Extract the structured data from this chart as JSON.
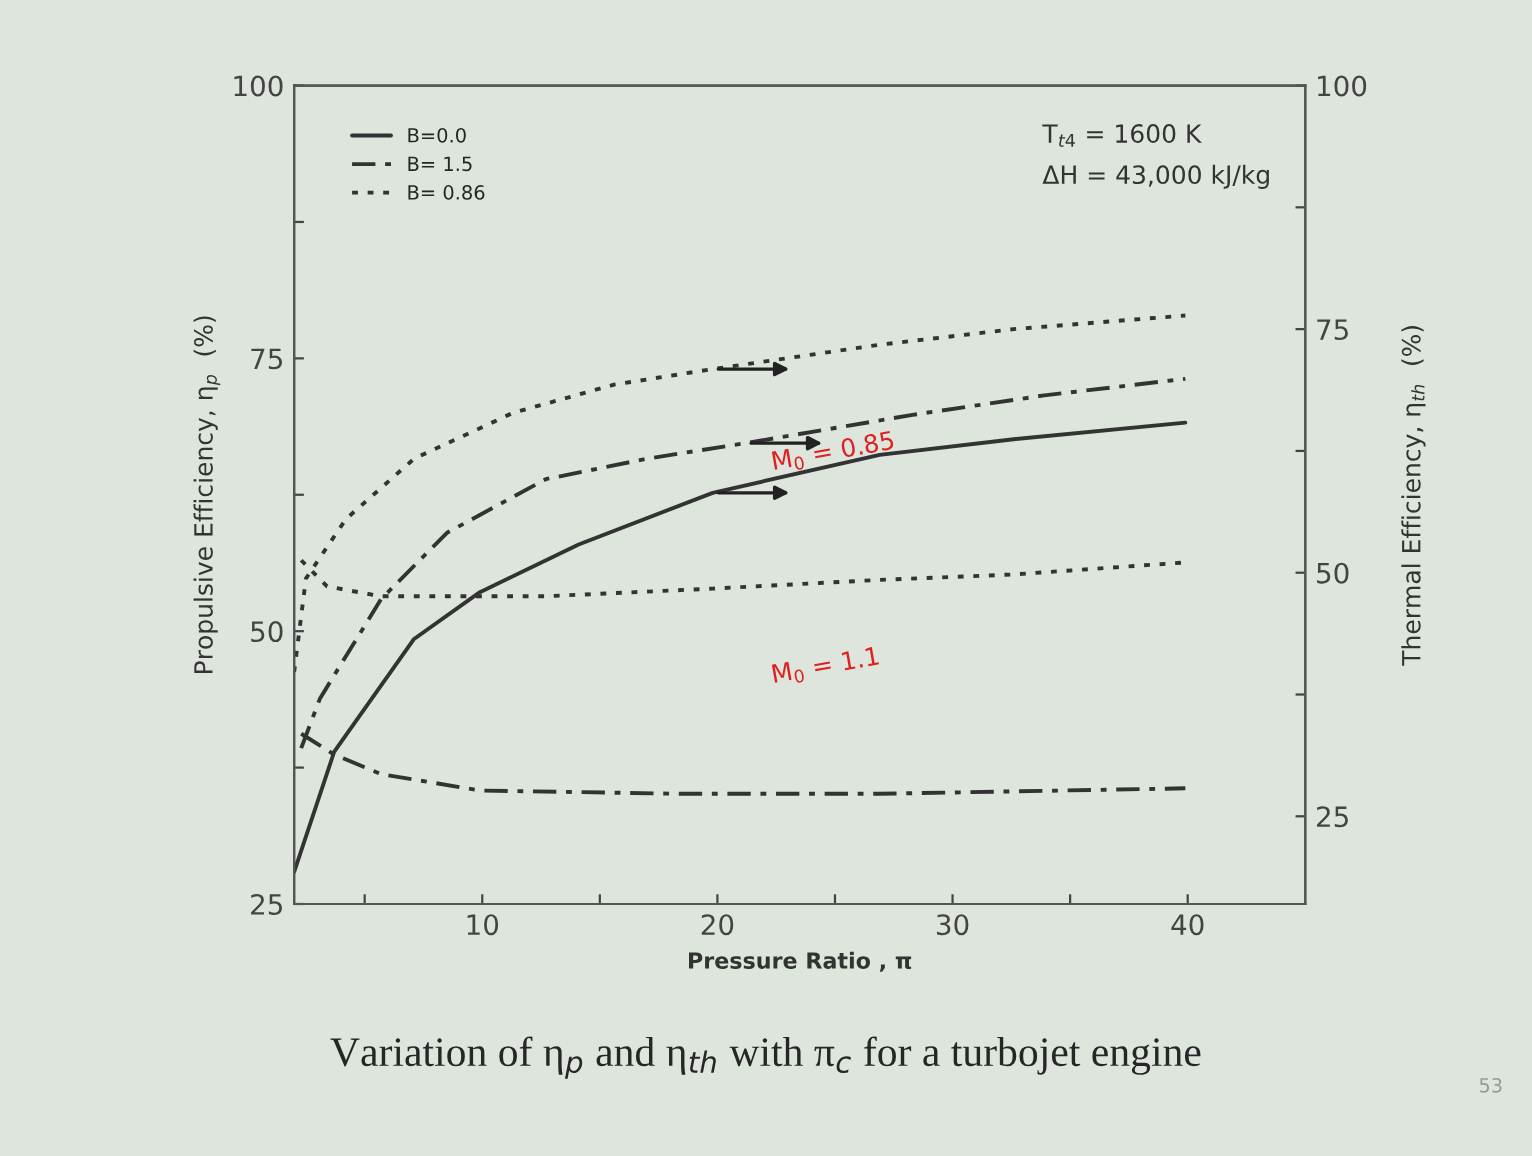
{
  "chart_data": {
    "type": "line",
    "title": "Variation of η$_{p}$ and η$_{th}$ with π$_{c}$ for a turbojet engine",
    "xlabel": "Pressure Ratio , π",
    "ylabel": "Propulsive Efficiency, η$_{p}$  (%)",
    "y2label": "Thermal Efficiency, η$_{th}$  (%)",
    "xlim": [
      2,
      45
    ],
    "xticks": [
      {
        "value": 5,
        "label": null
      },
      10,
      {
        "value": 15,
        "label": null
      },
      20,
      {
        "value": 25,
        "label": null
      },
      30,
      {
        "value": 35,
        "label": null
      },
      40
    ],
    "ylim": [
      25,
      100
    ],
    "yticks": [
      25,
      {
        "value": 37.5,
        "label": null
      },
      50,
      {
        "value": 62.5,
        "label": null
      },
      75,
      {
        "value": 87.5,
        "label": null
      },
      100
    ],
    "y2lim": [
      16,
      100
    ],
    "y2ticks": [
      25,
      {
        "value": 37.5,
        "label": null
      },
      50,
      {
        "value": 62.5,
        "label": null
      },
      75,
      {
        "value": 87.5,
        "label": null
      },
      100
    ],
    "legend": "top left",
    "grid": false,
    "series": [
      {
        "name": "B=0.0",
        "color": "#333333",
        "line_style": "solid",
        "axis": "y2",
        "x": [
          2,
          3.7,
          7.1,
          9.9,
          14.1,
          19.8,
          26.9,
          32.6,
          39.9
        ],
        "values": [
          19.3,
          31.6,
          43.2,
          48.0,
          52.9,
          58.2,
          62.1,
          63.7,
          65.4
        ]
      },
      {
        "name": "B= 1.5",
        "color": "#333333",
        "line_style": "dashdot",
        "axis": "y2",
        "x": [
          2.3,
          3.1,
          5.7,
          8.5,
          12.7,
          17.0,
          21.2,
          28.3,
          33.9,
          39.9
        ],
        "values": [
          32,
          37.1,
          47.3,
          54.1,
          59.6,
          61.7,
          63.3,
          66.2,
          68.2,
          69.9
        ]
      },
      {
        "name": "B= 0.86",
        "color": "#333333",
        "line_style": "dotted",
        "axis": "y2",
        "x": [
          2,
          2.5,
          4.2,
          7.1,
          11.3,
          15.6,
          19.8,
          26.9,
          32.6,
          39.9
        ],
        "values": [
          39.8,
          49.4,
          55.5,
          61.7,
          66.4,
          69.3,
          70.9,
          73.4,
          75.0,
          76.4
        ]
      },
      {
        "color": "#333333",
        "line_style": "dotted",
        "x": [
          2.3,
          3.4,
          5.7,
          12.7,
          19.8,
          26.9,
          32.6,
          39.9
        ],
        "values": [
          56.5,
          54.1,
          53.2,
          53.2,
          53.9,
          54.7,
          55.2,
          56.3
        ]
      },
      {
        "color": "#333333",
        "line_style": "dashdot",
        "x": [
          2.3,
          3.7,
          5.7,
          9.9,
          18.4,
          26.9,
          39.9
        ],
        "values": [
          40.6,
          38.7,
          36.9,
          35.4,
          35.1,
          35.1,
          35.6
        ]
      }
    ],
    "annotations": [
      "T$_{t4}$ = 1600 K",
      "ΔH = 43,000 kJ/kg",
      "M$_{0}$ = 0.85",
      "M$_{0}$ = 1.1",
      "53"
    ]
  }
}
